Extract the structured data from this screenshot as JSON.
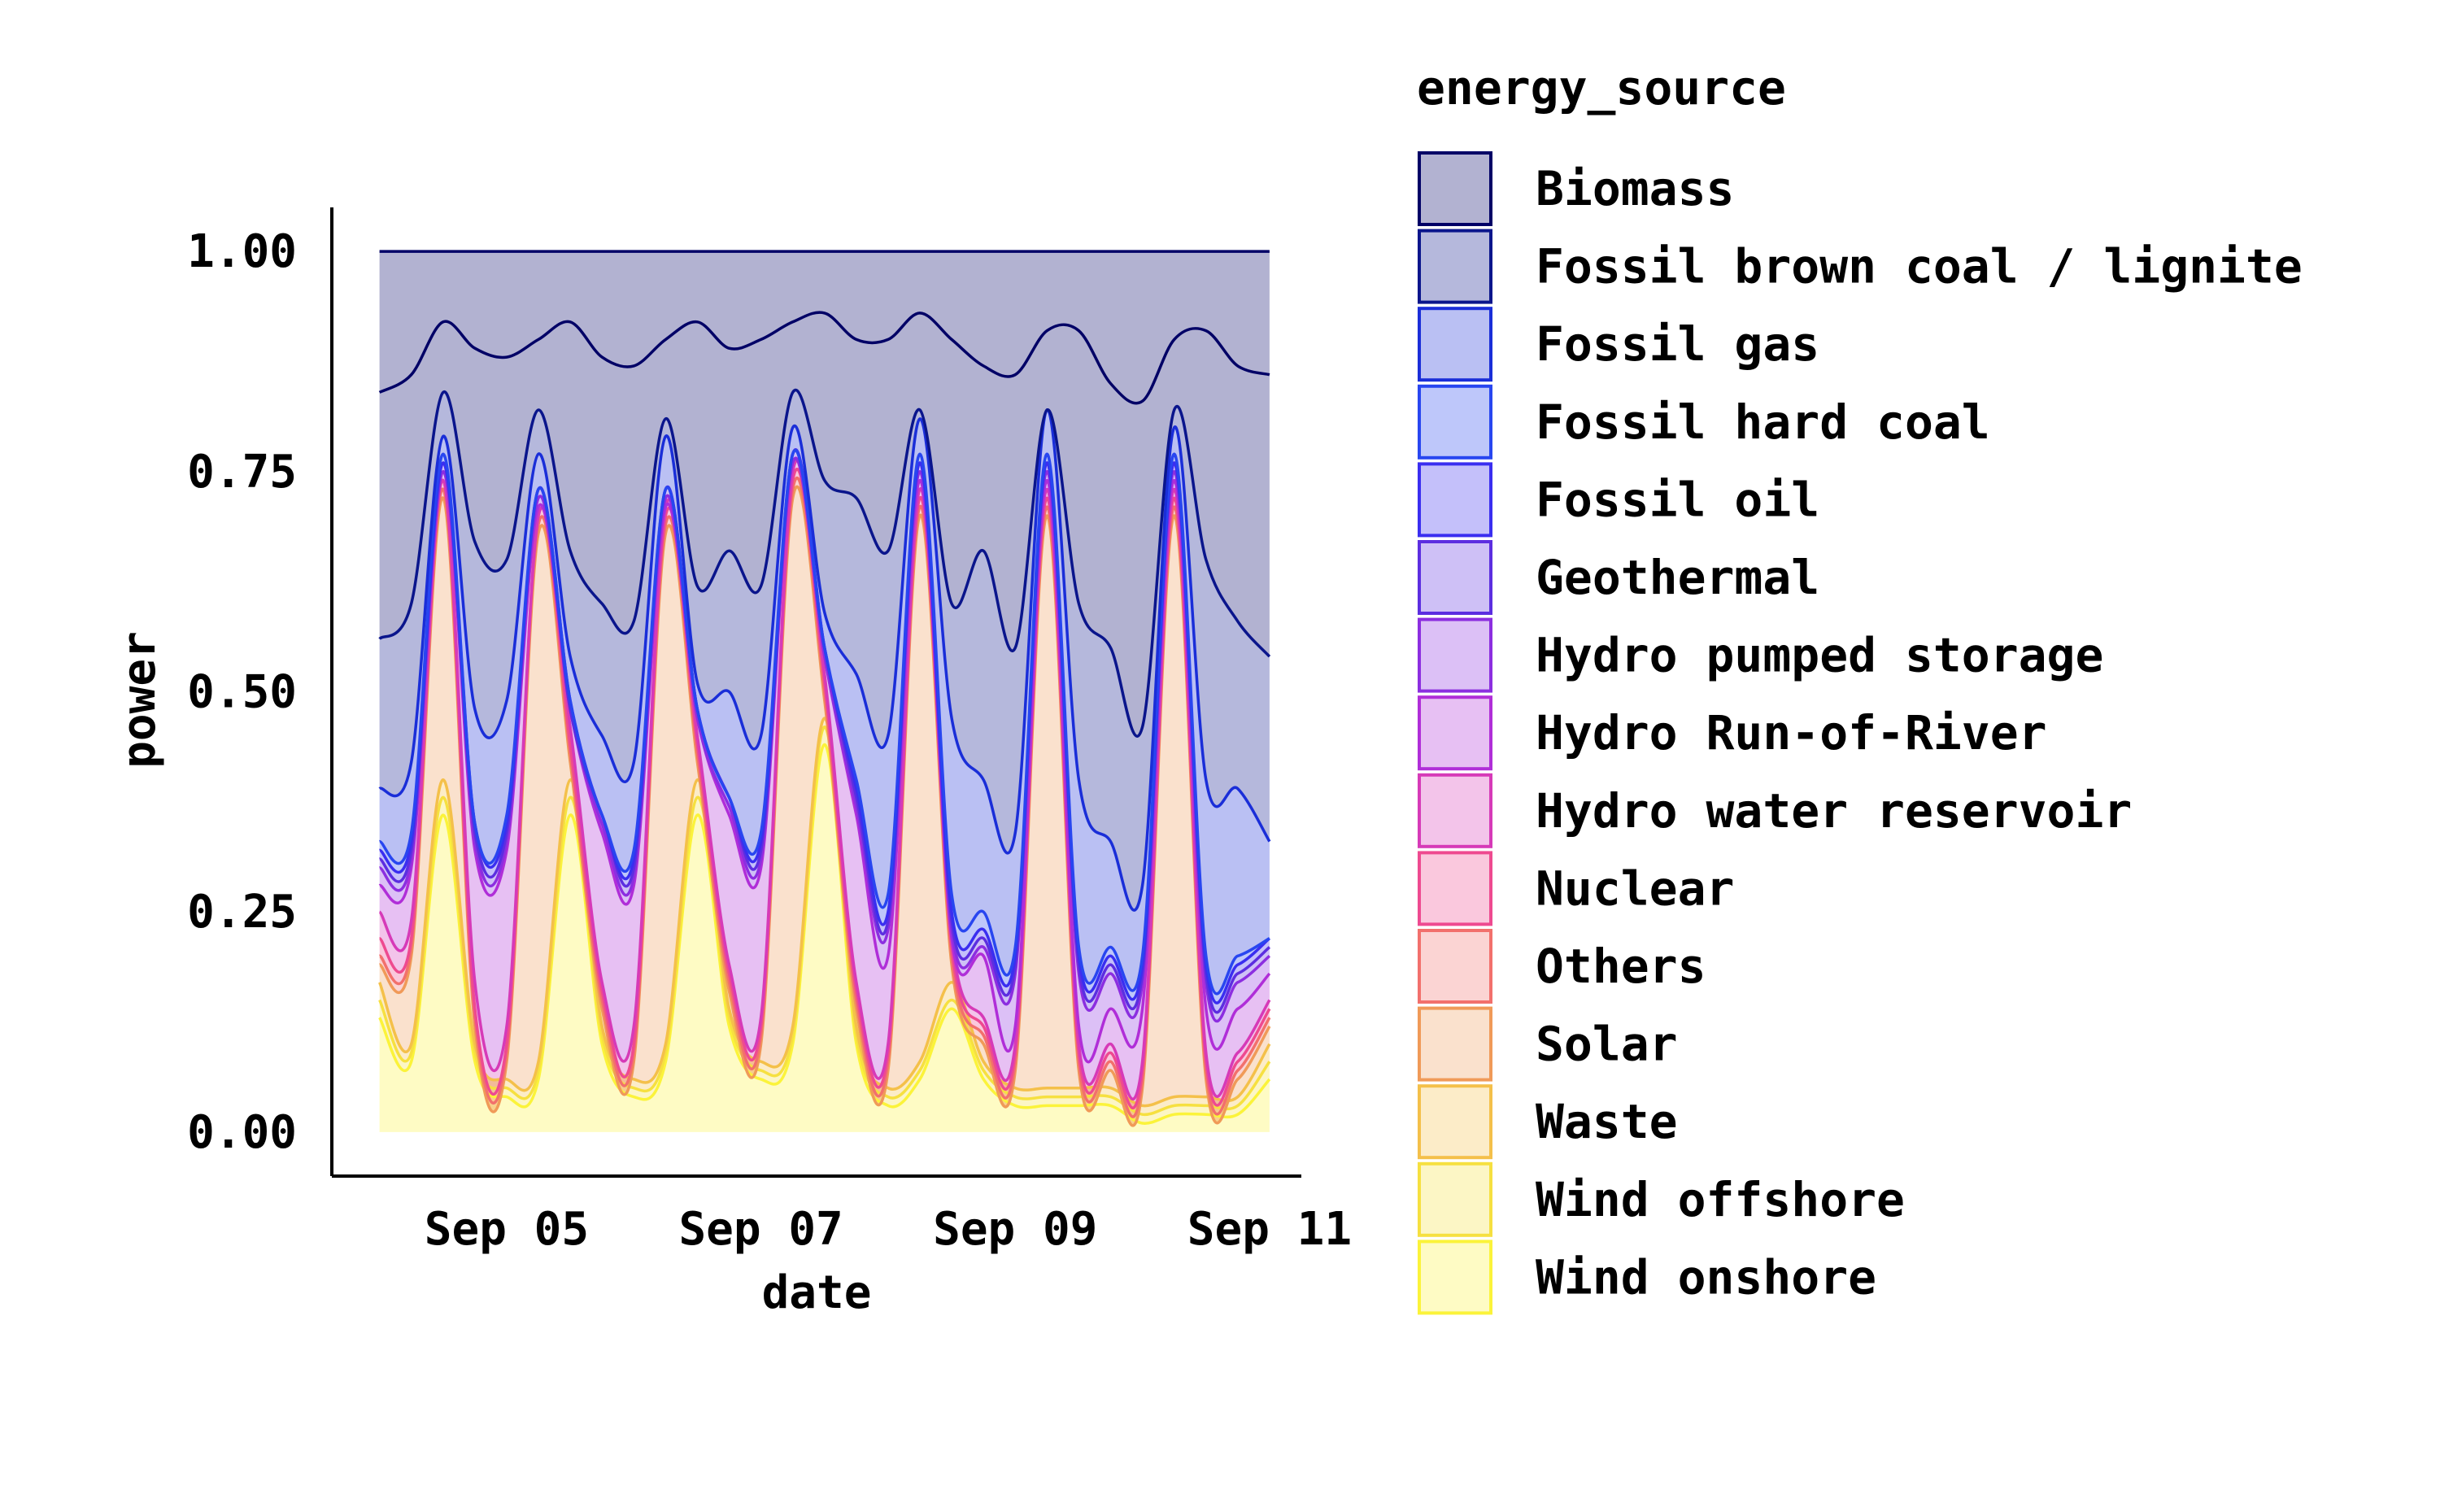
{
  "chart_data": {
    "type": "area",
    "stacking": "fill",
    "xlabel": "date",
    "ylabel": "power",
    "x_ticks": [
      {
        "date": "2021-09-05",
        "label": "Sep 05"
      },
      {
        "date": "2021-09-07",
        "label": "Sep 07"
      },
      {
        "date": "2021-09-09",
        "label": "Sep 09"
      },
      {
        "date": "2021-09-11",
        "label": "Sep 11"
      }
    ],
    "y_ticks": [
      {
        "value": 0,
        "label": "0.00"
      },
      {
        "value": 0.25,
        "label": "0.25"
      },
      {
        "value": 0.5,
        "label": "0.50"
      },
      {
        "value": 0.75,
        "label": "0.75"
      },
      {
        "value": 1,
        "label": "1.00"
      }
    ],
    "xlim": [
      "2021-09-03T15:00",
      "2021-09-11T06:00"
    ],
    "ylim": [
      -0.05,
      1.05
    ],
    "grid": false,
    "legend": {
      "title": "energy_source",
      "position": "right"
    },
    "boundaries": {
      "x": [
        "2021-09-04T00:00",
        "2021-09-04T06:00",
        "2021-09-04T12:00",
        "2021-09-04T18:00",
        "2021-09-05T00:00",
        "2021-09-05T06:00",
        "2021-09-05T12:00",
        "2021-09-05T18:00",
        "2021-09-06T00:00",
        "2021-09-06T06:00",
        "2021-09-06T12:00",
        "2021-09-06T18:00",
        "2021-09-07T00:00",
        "2021-09-07T06:00",
        "2021-09-07T12:00",
        "2021-09-07T18:00",
        "2021-09-08T00:00",
        "2021-09-08T06:00",
        "2021-09-08T12:00",
        "2021-09-08T18:00",
        "2021-09-09T00:00",
        "2021-09-09T06:00",
        "2021-09-09T12:00",
        "2021-09-09T18:00",
        "2021-09-10T00:00",
        "2021-09-10T06:00",
        "2021-09-10T12:00",
        "2021-09-10T18:00",
        "2021-09-11T00:00"
      ],
      "cumulative_top": [
        {
          "name": "Wind onshore",
          "values": [
            0.13,
            0.08,
            0.36,
            0.08,
            0.04,
            0.06,
            0.36,
            0.1,
            0.04,
            0.08,
            0.36,
            0.12,
            0.06,
            0.1,
            0.44,
            0.1,
            0.03,
            0.06,
            0.14,
            0.06,
            0.03,
            0.03,
            0.03,
            0.03,
            0.01,
            0.02,
            0.02,
            0.02,
            0.06
          ]
        },
        {
          "name": "Wind offshore",
          "values": [
            0.15,
            0.09,
            0.38,
            0.09,
            0.05,
            0.07,
            0.38,
            0.11,
            0.05,
            0.09,
            0.38,
            0.13,
            0.07,
            0.11,
            0.46,
            0.11,
            0.04,
            0.07,
            0.15,
            0.07,
            0.04,
            0.04,
            0.04,
            0.04,
            0.02,
            0.03,
            0.03,
            0.03,
            0.08
          ]
        },
        {
          "name": "Waste",
          "values": [
            0.17,
            0.1,
            0.4,
            0.1,
            0.06,
            0.08,
            0.4,
            0.12,
            0.06,
            0.1,
            0.4,
            0.14,
            0.08,
            0.12,
            0.47,
            0.12,
            0.05,
            0.08,
            0.17,
            0.08,
            0.05,
            0.05,
            0.05,
            0.05,
            0.03,
            0.04,
            0.04,
            0.04,
            0.1
          ]
        },
        {
          "name": "Solar",
          "values": [
            0.19,
            0.2,
            0.72,
            0.12,
            0.08,
            0.68,
            0.42,
            0.14,
            0.08,
            0.68,
            0.42,
            0.16,
            0.1,
            0.72,
            0.49,
            0.14,
            0.07,
            0.7,
            0.19,
            0.1,
            0.07,
            0.7,
            0.07,
            0.07,
            0.05,
            0.7,
            0.06,
            0.06,
            0.12
          ]
        },
        {
          "name": "Others",
          "values": [
            0.2,
            0.21,
            0.73,
            0.13,
            0.09,
            0.69,
            0.43,
            0.15,
            0.09,
            0.69,
            0.43,
            0.17,
            0.11,
            0.73,
            0.5,
            0.15,
            0.08,
            0.71,
            0.2,
            0.11,
            0.08,
            0.71,
            0.08,
            0.08,
            0.06,
            0.71,
            0.07,
            0.07,
            0.13
          ]
        },
        {
          "name": "Nuclear",
          "values": [
            0.22,
            0.22,
            0.74,
            0.14,
            0.1,
            0.7,
            0.44,
            0.16,
            0.1,
            0.7,
            0.44,
            0.18,
            0.12,
            0.74,
            0.51,
            0.16,
            0.09,
            0.72,
            0.21,
            0.12,
            0.09,
            0.72,
            0.09,
            0.09,
            0.07,
            0.72,
            0.08,
            0.08,
            0.14
          ]
        },
        {
          "name": "Hydro water reservoir",
          "values": [
            0.25,
            0.24,
            0.74,
            0.17,
            0.12,
            0.7,
            0.46,
            0.17,
            0.12,
            0.71,
            0.45,
            0.19,
            0.13,
            0.75,
            0.52,
            0.17,
            0.1,
            0.73,
            0.22,
            0.13,
            0.1,
            0.73,
            0.1,
            0.1,
            0.08,
            0.73,
            0.09,
            0.09,
            0.15
          ]
        },
        {
          "name": "Hydro Run-of-River",
          "values": [
            0.28,
            0.3,
            0.75,
            0.32,
            0.32,
            0.71,
            0.48,
            0.34,
            0.28,
            0.71,
            0.47,
            0.36,
            0.3,
            0.76,
            0.54,
            0.36,
            0.2,
            0.74,
            0.22,
            0.2,
            0.12,
            0.74,
            0.12,
            0.14,
            0.14,
            0.74,
            0.14,
            0.14,
            0.18
          ]
        },
        {
          "name": "Hydro pumped storage",
          "values": [
            0.3,
            0.31,
            0.75,
            0.33,
            0.33,
            0.72,
            0.48,
            0.35,
            0.29,
            0.72,
            0.47,
            0.37,
            0.31,
            0.76,
            0.54,
            0.37,
            0.23,
            0.75,
            0.23,
            0.21,
            0.18,
            0.75,
            0.18,
            0.18,
            0.17,
            0.75,
            0.17,
            0.17,
            0.2
          ]
        },
        {
          "name": "Geothermal",
          "values": [
            0.31,
            0.32,
            0.76,
            0.34,
            0.34,
            0.73,
            0.48,
            0.36,
            0.3,
            0.73,
            0.48,
            0.38,
            0.32,
            0.77,
            0.55,
            0.38,
            0.24,
            0.76,
            0.24,
            0.22,
            0.19,
            0.76,
            0.19,
            0.19,
            0.18,
            0.76,
            0.18,
            0.18,
            0.21
          ]
        },
        {
          "name": "Fossil oil",
          "values": [
            0.32,
            0.33,
            0.76,
            0.35,
            0.35,
            0.73,
            0.49,
            0.36,
            0.31,
            0.73,
            0.48,
            0.38,
            0.33,
            0.77,
            0.55,
            0.39,
            0.25,
            0.76,
            0.25,
            0.23,
            0.2,
            0.76,
            0.2,
            0.2,
            0.19,
            0.76,
            0.19,
            0.19,
            0.22
          ]
        },
        {
          "name": "Fossil hard coal",
          "values": [
            0.33,
            0.34,
            0.77,
            0.35,
            0.36,
            0.73,
            0.49,
            0.36,
            0.32,
            0.73,
            0.48,
            0.38,
            0.34,
            0.77,
            0.55,
            0.4,
            0.27,
            0.77,
            0.27,
            0.25,
            0.21,
            0.77,
            0.21,
            0.21,
            0.2,
            0.77,
            0.2,
            0.2,
            0.22
          ]
        },
        {
          "name": "Fossil gas",
          "values": [
            0.39,
            0.42,
            0.79,
            0.48,
            0.49,
            0.77,
            0.54,
            0.45,
            0.42,
            0.79,
            0.51,
            0.5,
            0.45,
            0.8,
            0.59,
            0.52,
            0.45,
            0.81,
            0.47,
            0.4,
            0.34,
            0.82,
            0.4,
            0.33,
            0.28,
            0.8,
            0.4,
            0.39,
            0.33
          ]
        },
        {
          "name": "Fossil brown coal / lignite",
          "values": [
            0.56,
            0.6,
            0.84,
            0.67,
            0.65,
            0.82,
            0.66,
            0.6,
            0.58,
            0.81,
            0.62,
            0.66,
            0.62,
            0.84,
            0.74,
            0.72,
            0.66,
            0.82,
            0.6,
            0.66,
            0.55,
            0.82,
            0.6,
            0.55,
            0.46,
            0.82,
            0.65,
            0.58,
            0.54
          ]
        },
        {
          "name": "Biomass",
          "values": [
            1,
            1,
            1,
            1,
            1,
            1,
            1,
            1,
            1,
            1,
            1,
            1,
            1,
            1,
            1,
            1,
            1,
            1,
            1,
            1,
            1,
            1,
            1,
            1,
            1,
            1,
            1,
            1,
            1
          ]
        }
      ],
      "biomass_lower_edge": [
        0.84,
        0.86,
        0.92,
        0.89,
        0.88,
        0.9,
        0.92,
        0.88,
        0.87,
        0.9,
        0.92,
        0.89,
        0.9,
        0.92,
        0.93,
        0.9,
        0.9,
        0.93,
        0.9,
        0.87,
        0.86,
        0.91,
        0.91,
        0.85,
        0.83,
        0.9,
        0.91,
        0.87,
        0.86
      ]
    },
    "series": [
      {
        "name": "Biomass",
        "color": "#000066"
      },
      {
        "name": "Fossil brown coal / lignite",
        "color": "#0a158c"
      },
      {
        "name": "Fossil gas",
        "color": "#1a2ed8"
      },
      {
        "name": "Fossil hard coal",
        "color": "#2846f0"
      },
      {
        "name": "Fossil oil",
        "color": "#3a2ef0"
      },
      {
        "name": "Geothermal",
        "color": "#5c2ee0"
      },
      {
        "name": "Hydro pumped storage",
        "color": "#8c2ee0"
      },
      {
        "name": "Hydro Run-of-River",
        "color": "#b02ed8"
      },
      {
        "name": "Hydro water reservoir",
        "color": "#d63ab8"
      },
      {
        "name": "Nuclear",
        "color": "#ee4a90"
      },
      {
        "name": "Others",
        "color": "#f2706c"
      },
      {
        "name": "Solar",
        "color": "#f09a58"
      },
      {
        "name": "Waste",
        "color": "#f4c04a"
      },
      {
        "name": "Wind offshore",
        "color": "#f6e040"
      },
      {
        "name": "Wind onshore",
        "color": "#fbf33a"
      }
    ]
  }
}
